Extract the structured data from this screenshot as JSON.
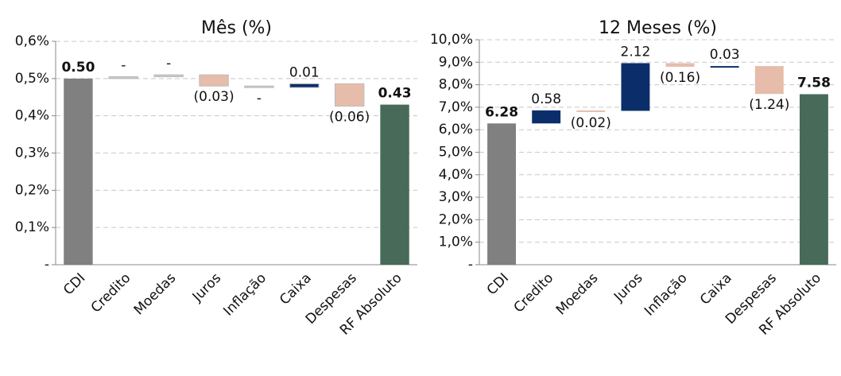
{
  "chart_data": [
    {
      "type": "waterfall",
      "title": "Mês (%)",
      "categories": [
        "CDI",
        "Credito",
        "Moedas",
        "Juros",
        "Inflação",
        "Caixa",
        "Despesas",
        "RF Absoluto"
      ],
      "measures": [
        "absolute",
        "relative",
        "relative",
        "relative",
        "relative",
        "relative",
        "relative",
        "total"
      ],
      "values": [
        0.5,
        0.005,
        0.005,
        -0.03,
        -0.004,
        0.01,
        -0.06,
        0.43
      ],
      "value_labels": [
        "0.50",
        "-",
        "-",
        "(0.03)",
        "-",
        "0.01",
        "(0.06)",
        "0.43"
      ],
      "colors": [
        "#808080",
        "#c8c8c8",
        "#c8c8c8",
        "#e6bcaa",
        "#c8c8c8",
        "#0b2e6b",
        "#e6bcaa",
        "#476b58"
      ],
      "ylim": [
        0,
        0.6
      ],
      "yticks": [
        {
          "value": 0,
          "label": "-"
        },
        {
          "value": 0.1,
          "label": "0,1%"
        },
        {
          "value": 0.2,
          "label": "0,2%"
        },
        {
          "value": 0.3,
          "label": "0,3%"
        },
        {
          "value": 0.4,
          "label": "0,4%"
        },
        {
          "value": 0.5,
          "label": "0,5%"
        },
        {
          "value": 0.6,
          "label": "0,6%"
        }
      ],
      "grid": true
    },
    {
      "type": "waterfall",
      "title": "12 Meses (%)",
      "categories": [
        "CDI",
        "Credito",
        "Moedas",
        "Juros",
        "Inflação",
        "Caixa",
        "Despesas",
        "RF Absoluto"
      ],
      "measures": [
        "absolute",
        "relative",
        "relative",
        "relative",
        "relative",
        "relative",
        "relative",
        "total"
      ],
      "values": [
        6.28,
        0.58,
        -0.02,
        2.12,
        -0.16,
        0.03,
        -1.24,
        7.58
      ],
      "value_labels": [
        "6.28",
        "0.58",
        "(0.02)",
        "2.12",
        "(0.16)",
        "0.03",
        "(1.24)",
        "7.58"
      ],
      "colors": [
        "#808080",
        "#0b2e6b",
        "#e6bcaa",
        "#0b2e6b",
        "#e6bcaa",
        "#0b2e6b",
        "#e6bcaa",
        "#476b58"
      ],
      "ylim": [
        0,
        10
      ],
      "yticks": [
        {
          "value": 0,
          "label": "-"
        },
        {
          "value": 1,
          "label": "1,0%"
        },
        {
          "value": 2,
          "label": "2,0%"
        },
        {
          "value": 3,
          "label": "3,0%"
        },
        {
          "value": 4,
          "label": "4,0%"
        },
        {
          "value": 5,
          "label": "5,0%"
        },
        {
          "value": 6,
          "label": "6,0%"
        },
        {
          "value": 7,
          "label": "7,0%"
        },
        {
          "value": 8,
          "label": "8,0%"
        },
        {
          "value": 9,
          "label": "9,0%"
        },
        {
          "value": 10,
          "label": "10,0%"
        }
      ],
      "grid": true
    }
  ]
}
